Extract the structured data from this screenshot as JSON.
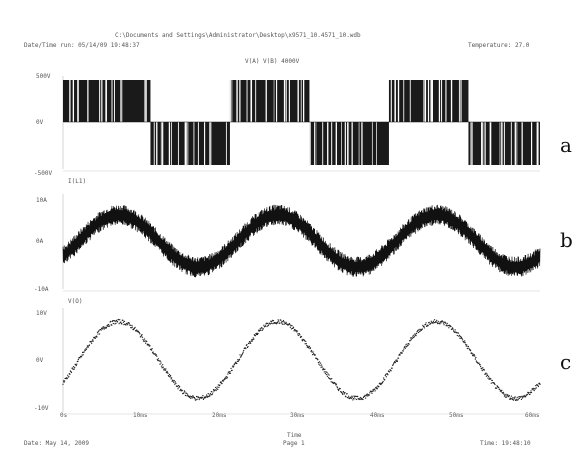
{
  "header": {
    "file_path": "C:\\Documents and Settings\\Administrator\\Desktop\\x9571_10.4571_10.wdb",
    "datetime": "Date/Time run: 05/14/09 19:48:37",
    "temperature": "Temperature: 27.0"
  },
  "footer": {
    "date": "Date: May 14, 2009",
    "page": "Page 1",
    "time": "Time: 19:48:10",
    "xlabel": "Time"
  },
  "panel_labels": [
    "a",
    "b",
    "c"
  ],
  "chart_data": [
    {
      "type": "line",
      "panel": "a",
      "title": "V(A) V(B) 4000V",
      "ylabels": [
        "500V",
        "0V",
        "-500V"
      ],
      "ylim": [
        -500,
        500
      ],
      "xlim": [
        0,
        60
      ],
      "x_unit": "ms",
      "description_kind": "square-wave PWM",
      "segments": [
        {
          "x0": 0,
          "x1": 11,
          "level": 1
        },
        {
          "x0": 11,
          "x1": 21,
          "level": -1
        },
        {
          "x0": 21,
          "x1": 31,
          "level": 1
        },
        {
          "x0": 31,
          "x1": 41,
          "level": -1
        },
        {
          "x0": 41,
          "x1": 51,
          "level": 1
        },
        {
          "x0": 51,
          "x1": 61,
          "level": -1
        }
      ],
      "color": "#111111"
    },
    {
      "type": "line",
      "panel": "b",
      "title": "I(L1)",
      "ylabels": [
        "10A",
        "0A",
        "-10A"
      ],
      "ylim": [
        -10,
        10
      ],
      "xlim": [
        0,
        60
      ],
      "period_ms": 20,
      "amplitude": 6,
      "ripple": 2.2,
      "color": "#111111"
    },
    {
      "type": "line",
      "panel": "c",
      "title": "V(O)",
      "ylabels": [
        "10V",
        "0V",
        "-10V"
      ],
      "ylim": [
        -10,
        10
      ],
      "xlim": [
        0,
        60
      ],
      "period_ms": 20,
      "amplitude": 8,
      "color": "#111111"
    }
  ],
  "x_ticks": [
    "0s",
    "10ms",
    "20ms",
    "30ms",
    "40ms",
    "50ms",
    "60ms"
  ]
}
